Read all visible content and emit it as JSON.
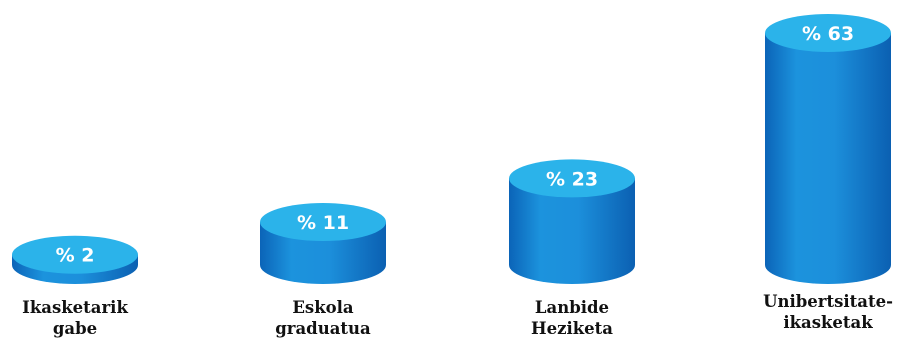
{
  "chart_data": {
    "type": "bar",
    "title": "",
    "xlabel": "",
    "ylabel": "",
    "categories": [
      "Ikasketarik\ngabe",
      "Eskola\ngraduatua",
      "Lanbide\nHeziketa",
      "Unibertsitate-\nikasketak"
    ],
    "values": [
      2,
      11,
      23,
      63
    ],
    "value_labels": [
      "% 2",
      "% 11",
      "% 23",
      "% 63"
    ],
    "ylim": [
      0,
      63
    ],
    "grid": false,
    "legend": "none",
    "colors": {
      "top": "#2bb3ea",
      "side_light": "#1c93dd",
      "side_dark": "#0b64b8",
      "label_text": "#ffffff",
      "category_text": "#111111"
    }
  }
}
